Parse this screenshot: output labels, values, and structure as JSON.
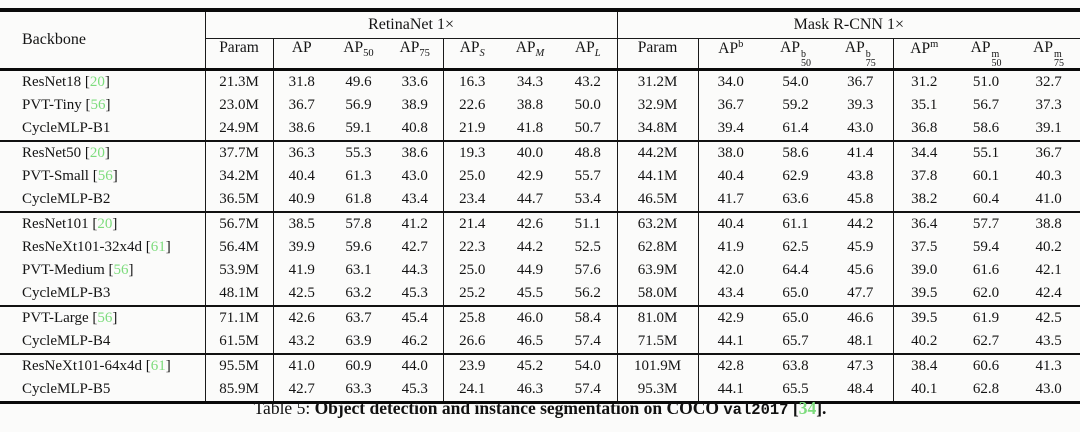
{
  "colors": {
    "citation_green": "#7ddc7d",
    "border_black": "#0a0a0a"
  },
  "citation": {
    "open": "[",
    "close": "]"
  },
  "table": {
    "header": {
      "backbone": "Backbone",
      "groups": [
        {
          "label": "RetinaNet 1×"
        },
        {
          "label": "Mask R-CNN 1×"
        }
      ],
      "retinanet_cols": [
        {
          "base": "Param"
        },
        {
          "base": "AP"
        },
        {
          "base": "AP",
          "sub": "50"
        },
        {
          "base": "AP",
          "sub": "75"
        },
        {
          "base": "AP",
          "sub": "S",
          "it": true
        },
        {
          "base": "AP",
          "sub": "M",
          "it": true
        },
        {
          "base": "AP",
          "sub": "L",
          "it": true
        }
      ],
      "mask_cols": [
        {
          "base": "Param"
        },
        {
          "base": "AP",
          "sup": "b"
        },
        {
          "base": "AP",
          "sup": "b",
          "sub": "50"
        },
        {
          "base": "AP",
          "sup": "b",
          "sub": "75"
        },
        {
          "base": "AP",
          "sup": "m"
        },
        {
          "base": "AP",
          "sup": "m",
          "sub": "50"
        },
        {
          "base": "AP",
          "sup": "m",
          "sub": "75"
        }
      ]
    },
    "groups": [
      {
        "rows": [
          {
            "backbone": "ResNet18",
            "ref": "20",
            "retinanet": [
              "21.3M",
              "31.8",
              "49.6",
              "33.6",
              "16.3",
              "34.3",
              "43.2"
            ],
            "mask": [
              "31.2M",
              "34.0",
              "54.0",
              "36.7",
              "31.2",
              "51.0",
              "32.7"
            ]
          },
          {
            "backbone": "PVT-Tiny",
            "ref": "56",
            "retinanet": [
              "23.0M",
              "36.7",
              "56.9",
              "38.9",
              "22.6",
              "38.8",
              "50.0"
            ],
            "mask": [
              "32.9M",
              "36.7",
              "59.2",
              "39.3",
              "35.1",
              "56.7",
              "37.3"
            ]
          },
          {
            "backbone": "CycleMLP-B1",
            "ref": null,
            "retinanet": [
              "24.9M",
              "38.6",
              "59.1",
              "40.8",
              "21.9",
              "41.8",
              "50.7"
            ],
            "mask": [
              "34.8M",
              "39.4",
              "61.4",
              "43.0",
              "36.8",
              "58.6",
              "39.1"
            ]
          }
        ]
      },
      {
        "rows": [
          {
            "backbone": "ResNet50",
            "ref": "20",
            "retinanet": [
              "37.7M",
              "36.3",
              "55.3",
              "38.6",
              "19.3",
              "40.0",
              "48.8"
            ],
            "mask": [
              "44.2M",
              "38.0",
              "58.6",
              "41.4",
              "34.4",
              "55.1",
              "36.7"
            ]
          },
          {
            "backbone": "PVT-Small",
            "ref": "56",
            "retinanet": [
              "34.2M",
              "40.4",
              "61.3",
              "43.0",
              "25.0",
              "42.9",
              "55.7"
            ],
            "mask": [
              "44.1M",
              "40.4",
              "62.9",
              "43.8",
              "37.8",
              "60.1",
              "40.3"
            ]
          },
          {
            "backbone": "CycleMLP-B2",
            "ref": null,
            "retinanet": [
              "36.5M",
              "40.9",
              "61.8",
              "43.4",
              "23.4",
              "44.7",
              "53.4"
            ],
            "mask": [
              "46.5M",
              "41.7",
              "63.6",
              "45.8",
              "38.2",
              "60.4",
              "41.0"
            ]
          }
        ]
      },
      {
        "rows": [
          {
            "backbone": "ResNet101",
            "ref": "20",
            "retinanet": [
              "56.7M",
              "38.5",
              "57.8",
              "41.2",
              "21.4",
              "42.6",
              "51.1"
            ],
            "mask": [
              "63.2M",
              "40.4",
              "61.1",
              "44.2",
              "36.4",
              "57.7",
              "38.8"
            ]
          },
          {
            "backbone": "ResNeXt101-32x4d",
            "ref": "61",
            "retinanet": [
              "56.4M",
              "39.9",
              "59.6",
              "42.7",
              "22.3",
              "44.2",
              "52.5"
            ],
            "mask": [
              "62.8M",
              "41.9",
              "62.5",
              "45.9",
              "37.5",
              "59.4",
              "40.2"
            ]
          },
          {
            "backbone": "PVT-Medium",
            "ref": "56",
            "retinanet": [
              "53.9M",
              "41.9",
              "63.1",
              "44.3",
              "25.0",
              "44.9",
              "57.6"
            ],
            "mask": [
              "63.9M",
              "42.0",
              "64.4",
              "45.6",
              "39.0",
              "61.6",
              "42.1"
            ]
          },
          {
            "backbone": "CycleMLP-B3",
            "ref": null,
            "retinanet": [
              "48.1M",
              "42.5",
              "63.2",
              "45.3",
              "25.2",
              "45.5",
              "56.2"
            ],
            "mask": [
              "58.0M",
              "43.4",
              "65.0",
              "47.7",
              "39.5",
              "62.0",
              "42.4"
            ]
          }
        ]
      },
      {
        "rows": [
          {
            "backbone": "PVT-Large",
            "ref": "56",
            "retinanet": [
              "71.1M",
              "42.6",
              "63.7",
              "45.4",
              "25.8",
              "46.0",
              "58.4"
            ],
            "mask": [
              "81.0M",
              "42.9",
              "65.0",
              "46.6",
              "39.5",
              "61.9",
              "42.5"
            ]
          },
          {
            "backbone": "CycleMLP-B4",
            "ref": null,
            "retinanet": [
              "61.5M",
              "43.2",
              "63.9",
              "46.2",
              "26.6",
              "46.5",
              "57.4"
            ],
            "mask": [
              "71.5M",
              "44.1",
              "65.7",
              "48.1",
              "40.2",
              "62.7",
              "43.5"
            ]
          }
        ]
      },
      {
        "rows": [
          {
            "backbone": "ResNeXt101-64x4d",
            "ref": "61",
            "retinanet": [
              "95.5M",
              "41.0",
              "60.9",
              "44.0",
              "23.9",
              "45.2",
              "54.0"
            ],
            "mask": [
              "101.9M",
              "42.8",
              "63.8",
              "47.3",
              "38.4",
              "60.6",
              "41.3"
            ]
          },
          {
            "backbone": "CycleMLP-B5",
            "ref": null,
            "retinanet": [
              "85.9M",
              "42.7",
              "63.3",
              "45.3",
              "24.1",
              "46.3",
              "57.4"
            ],
            "mask": [
              "95.3M",
              "44.1",
              "65.5",
              "48.4",
              "40.1",
              "62.8",
              "43.0"
            ]
          }
        ]
      }
    ]
  },
  "caption": {
    "prefix": "Table 5: ",
    "bold_text": "Object detection and instance segmentation on COCO ",
    "code": "val2017",
    "open": " [",
    "ref": "34",
    "close": "]."
  }
}
